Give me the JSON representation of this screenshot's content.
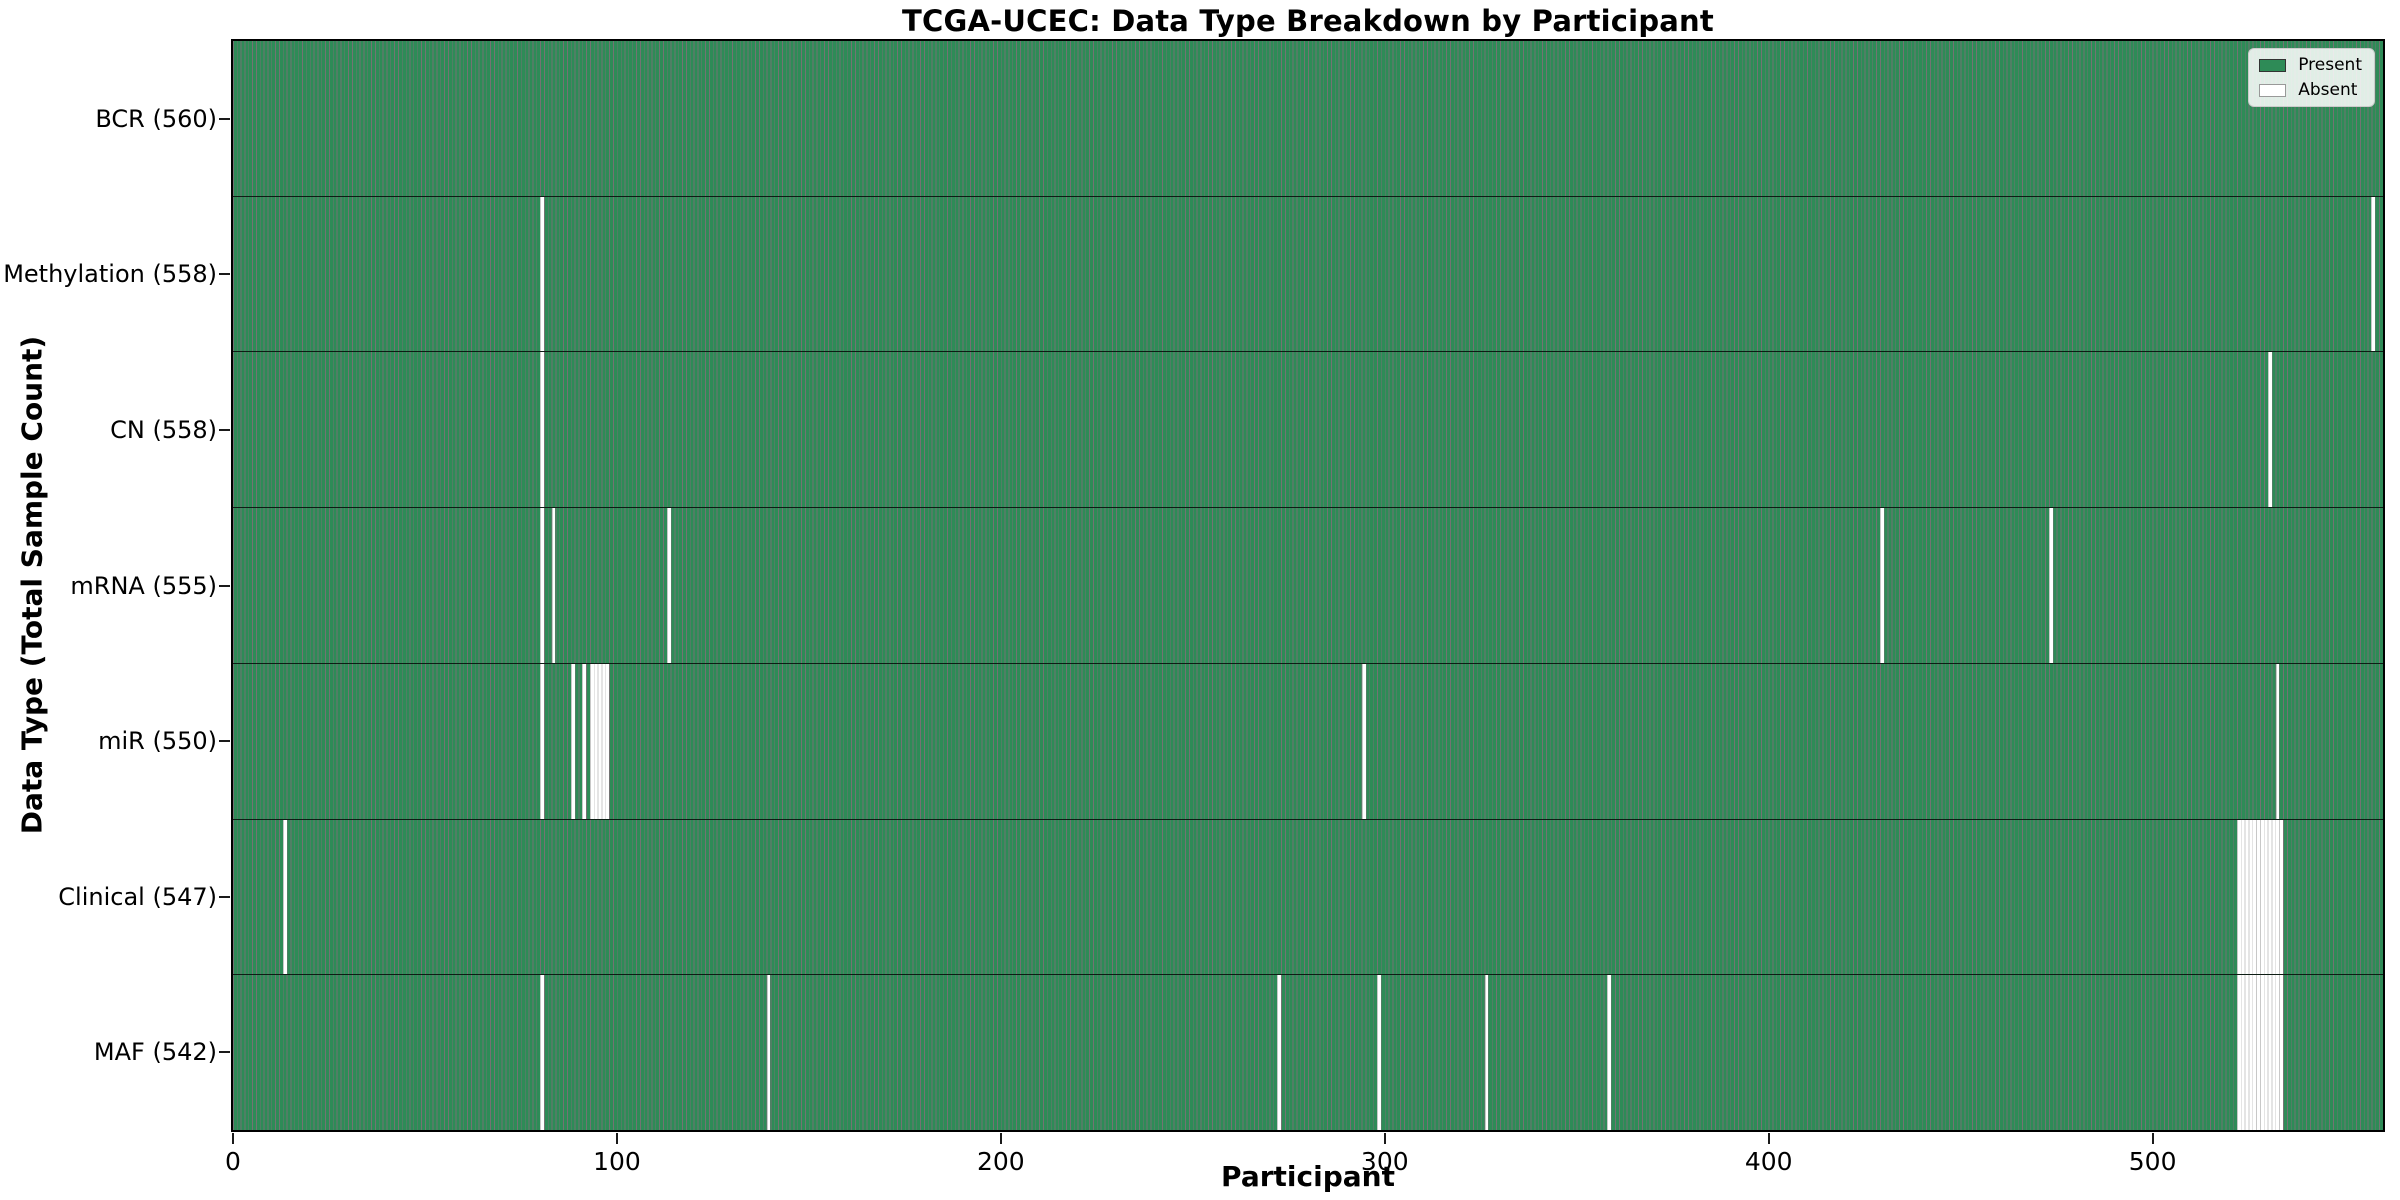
{
  "figure": {
    "title": "TCGA-UCEC: Data Type Breakdown by Participant",
    "xlabel": "Participant",
    "ylabel": "Data Type (Total Sample Count)"
  },
  "chart_data": {
    "type": "heatmap",
    "title": "TCGA-UCEC: Data Type Breakdown by Participant",
    "xlabel": "Participant",
    "ylabel": "Data Type (Total Sample Count)",
    "n_participants": 560,
    "xlim": [
      0,
      560
    ],
    "x_ticks": [
      0,
      100,
      200,
      300,
      400,
      500
    ],
    "grid": false,
    "legend_position": "upper right",
    "legend": [
      {
        "label": "Present",
        "color": "#2E8B57"
      },
      {
        "label": "Absent",
        "color": "#FFFFFF"
      }
    ],
    "colors": {
      "present": "#2E8B57",
      "absent": "#FFFFFF",
      "cell_edge": "#0000008C",
      "absent_edge": "#C8C8C8",
      "spine": "#000000"
    },
    "rows": [
      {
        "label": "BCR (560)",
        "name": "BCR",
        "total": 560,
        "absent_participants": []
      },
      {
        "label": "Methylation (558)",
        "name": "Methylation",
        "total": 558,
        "absent_participants": [
          80,
          557
        ]
      },
      {
        "label": "CN (558)",
        "name": "CN",
        "total": 558,
        "absent_participants": [
          80,
          530
        ]
      },
      {
        "label": "mRNA (555)",
        "name": "mRNA",
        "total": 555,
        "absent_participants": [
          80,
          83,
          113,
          429,
          473
        ]
      },
      {
        "label": "miR (550)",
        "name": "miR",
        "total": 550,
        "absent_participants": [
          80,
          88,
          91,
          93,
          94,
          95,
          96,
          97,
          294,
          532
        ]
      },
      {
        "label": "Clinical (547)",
        "name": "Clinical",
        "total": 547,
        "absent_participants": [
          13,
          522,
          523,
          524,
          525,
          526,
          527,
          528,
          529,
          530,
          531,
          532,
          533
        ]
      },
      {
        "label": "MAF (542)",
        "name": "MAF",
        "total": 542,
        "absent_participants": [
          80,
          139,
          272,
          298,
          326,
          358,
          522,
          523,
          524,
          525,
          526,
          527,
          528,
          529,
          530,
          531,
          532,
          533
        ]
      }
    ]
  }
}
